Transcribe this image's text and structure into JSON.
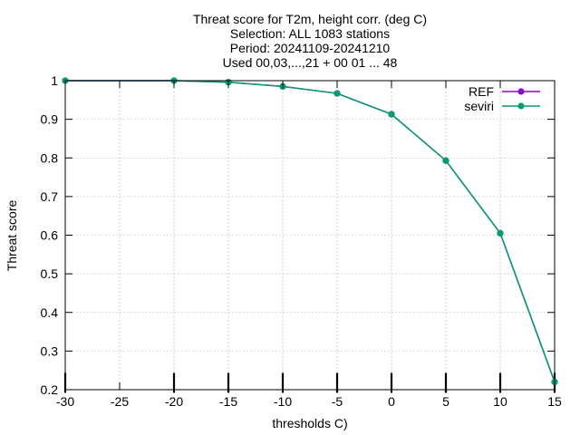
{
  "chart_data": {
    "type": "line",
    "title_lines": [
      "Threat score  for T2m, height corr. (deg C)",
      "Selection: ALL    1083 stations",
      "Period: 20241109-20241210",
      "Used 00,03,...,21 + 00 01 ... 48"
    ],
    "xlabel": "thresholds C)",
    "ylabel": "Threat score",
    "xlim": [
      -30,
      15
    ],
    "ylim": [
      0.2,
      1.0
    ],
    "x_ticks": [
      -30,
      -25,
      -20,
      -15,
      -10,
      -5,
      0,
      5,
      10,
      15
    ],
    "y_ticks": [
      0.2,
      0.3,
      0.4,
      0.5,
      0.6,
      0.7,
      0.8,
      0.9,
      1
    ],
    "x_tick_labels": [
      "-30",
      "-25",
      "-20",
      "-15",
      "-10",
      "-5",
      "0",
      "5",
      "10",
      "15"
    ],
    "y_tick_labels": [
      "0.2",
      "0.3",
      "0.4",
      "0.5",
      "0.6",
      "0.7",
      "0.8",
      "0.9",
      "1"
    ],
    "grid": true,
    "legend_position": "top-right",
    "sample_marker_x": [
      -30,
      -20,
      -15,
      -10,
      -5,
      0,
      5,
      10,
      15
    ],
    "series": [
      {
        "name": "REF",
        "color": "#9400d3",
        "x": [
          -30,
          -20,
          -15,
          -10,
          -5,
          0,
          5,
          10,
          15
        ],
        "y": [
          1.0,
          1.0,
          0.996,
          0.985,
          0.967,
          0.913,
          0.793,
          0.605,
          0.22
        ]
      },
      {
        "name": "seviri",
        "color": "#009e73",
        "x": [
          -30,
          -20,
          -15,
          -10,
          -5,
          0,
          5,
          10,
          15
        ],
        "y": [
          1.0,
          1.0,
          0.996,
          0.985,
          0.967,
          0.913,
          0.793,
          0.605,
          0.22
        ]
      }
    ]
  }
}
